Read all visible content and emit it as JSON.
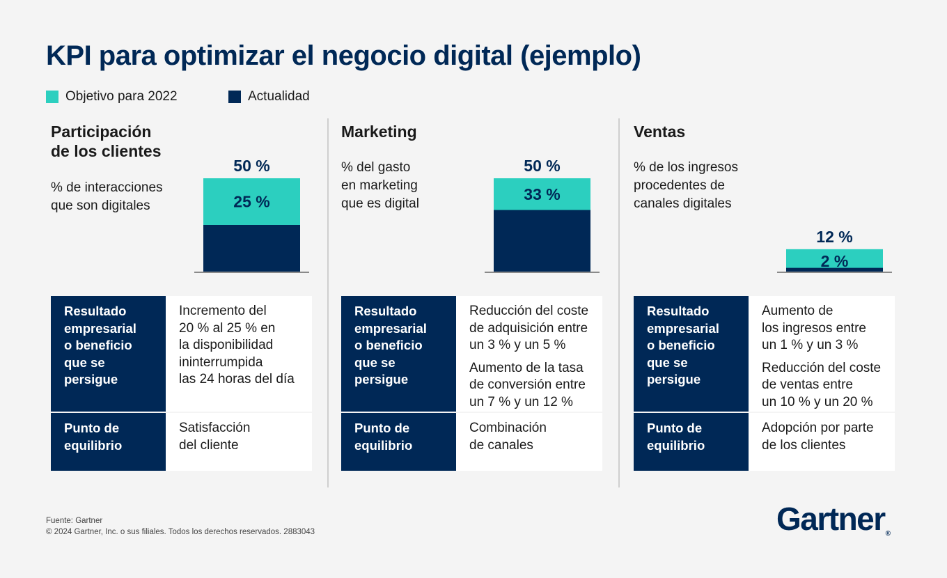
{
  "title": "KPI para optimizar el negocio digital (ejemplo)",
  "legend": {
    "target": {
      "label": "Objetivo para 2022",
      "color": "#2ccfbf"
    },
    "current": {
      "label": "Actualidad",
      "color": "#002856"
    }
  },
  "panels": [
    {
      "title": "Participación\nde los clientes",
      "subtitle": "% de interacciones\nque son digitales",
      "rows": {
        "result_label": "Resultado\nempresarial\no beneficio\nque se\npersigue",
        "result_texts": [
          "Incremento del\n20 % al 25 % en\nla disponibilidad\nininterrumpida\nlas 24 horas del día"
        ],
        "balance_label": "Punto de\nequilibrio",
        "balance_text": "Satisfacción\ndel cliente"
      }
    },
    {
      "title": "Marketing",
      "subtitle": "% del gasto\nen marketing\nque es digital",
      "rows": {
        "result_label": "Resultado\nempresarial\no beneficio\nque se\npersigue",
        "result_texts": [
          "Reducción del coste\nde adquisición entre\nun 3 % y un 5 %",
          "Aumento de la tasa\nde conversión entre\nun 7 % y un 12 %"
        ],
        "balance_label": "Punto de\nequilibrio",
        "balance_text": "Combinación\nde canales"
      }
    },
    {
      "title": "Ventas",
      "subtitle": "% de los ingresos\nprocedentes de\ncanales digitales",
      "rows": {
        "result_label": "Resultado\nempresarial\no beneficio\nque se\npersigue",
        "result_texts": [
          "Aumento de\nlos ingresos entre\nun 1 % y un 3 %",
          "Reducción del coste\nde ventas entre\nun 10 % y un 20 %"
        ],
        "balance_label": "Punto de\nequilibrio",
        "balance_text": "Adopción por parte\nde los clientes"
      }
    }
  ],
  "chart_data": {
    "type": "bar",
    "categories": [
      "Participación de los clientes",
      "Marketing",
      "Ventas"
    ],
    "series": [
      {
        "name": "Objetivo para 2022",
        "values": [
          50,
          50,
          12
        ],
        "labels": [
          "50 %",
          "50 %",
          "12 %"
        ]
      },
      {
        "name": "Actualidad",
        "values": [
          25,
          33,
          2
        ],
        "labels": [
          "25 %",
          "33 %",
          "2 %"
        ]
      }
    ],
    "ylim": [
      0,
      50
    ]
  },
  "footer": {
    "source": "Fuente: Gartner",
    "copyright": "© 2024 Gartner, Inc. o sus filiales. Todos los derechos reservados. 2883043"
  },
  "logo": {
    "text": "Gartner",
    "mark": "®"
  }
}
